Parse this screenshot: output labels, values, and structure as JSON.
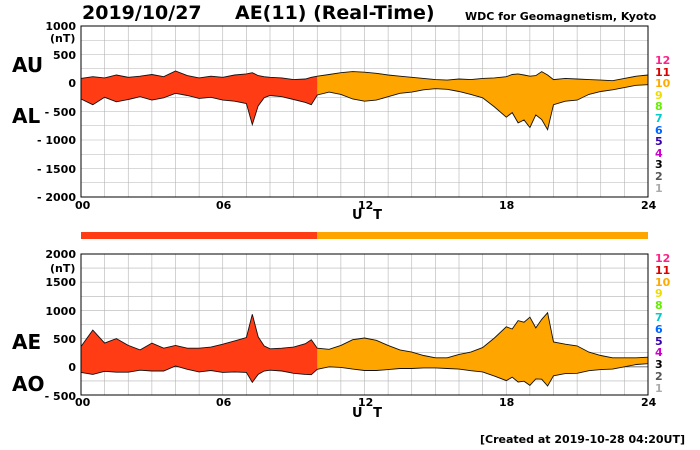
{
  "header": {
    "date": "2019/10/27",
    "title": "AE(11) (Real-Time)",
    "source": "WDC for Geomagnetism, Kyoto"
  },
  "footer": {
    "created": "[Created at 2019-10-28 04:20UT]"
  },
  "colors": {
    "early_fill": "#ff3c14",
    "late_fill": "#ffa500",
    "grid": "#b4b4b4",
    "stations": [
      "#aaaaaa",
      "#555555",
      "#000000",
      "#cc00cc",
      "#3300aa",
      "#0066ff",
      "#00cccc",
      "#66ee00",
      "#eedd00",
      "#ffaa00",
      "#dd0000",
      "#ff2288"
    ]
  },
  "station_counts": [
    "12",
    "11",
    "10",
    "9",
    "8",
    "7",
    "6",
    "5",
    "4",
    "3",
    "2",
    "1"
  ],
  "chart_data": [
    {
      "type": "area",
      "name": "AU/AL",
      "top_label": "AU",
      "bottom_label": "AL",
      "unit": "(nT)",
      "xlabel": "U T",
      "xlim": [
        0,
        24
      ],
      "ylim": [
        -2000,
        1000
      ],
      "ytick_labels": [
        "1000",
        "500",
        "0",
        "- 500",
        "- 1000",
        "- 1500",
        "- 2000"
      ],
      "xtick_labels": [
        "00",
        "06",
        "12",
        "18",
        "24"
      ],
      "color_switch_hour": 10,
      "hours": [
        0,
        0.5,
        1,
        1.5,
        2,
        2.5,
        3,
        3.5,
        4,
        4.5,
        5,
        5.5,
        6,
        6.5,
        7,
        7.25,
        7.5,
        7.75,
        8,
        8.5,
        9,
        9.5,
        9.75,
        10,
        10.5,
        11,
        11.5,
        12,
        12.5,
        13,
        13.5,
        14,
        14.5,
        15,
        15.5,
        16,
        16.5,
        17,
        17.5,
        18,
        18.25,
        18.5,
        18.75,
        19,
        19.25,
        19.5,
        19.75,
        20,
        20.5,
        21,
        21.5,
        22,
        22.5,
        23,
        23.5,
        24
      ],
      "series": [
        {
          "name": "AU",
          "values": [
            80,
            110,
            90,
            140,
            100,
            120,
            150,
            110,
            210,
            130,
            90,
            120,
            100,
            140,
            160,
            180,
            130,
            110,
            100,
            90,
            60,
            70,
            100,
            120,
            150,
            180,
            200,
            190,
            170,
            140,
            120,
            100,
            80,
            60,
            50,
            70,
            60,
            80,
            90,
            110,
            150,
            160,
            140,
            120,
            130,
            200,
            140,
            60,
            80,
            70,
            60,
            50,
            40,
            80,
            120,
            140
          ]
        },
        {
          "name": "AL",
          "values": [
            -280,
            -380,
            -250,
            -330,
            -290,
            -240,
            -300,
            -260,
            -180,
            -220,
            -270,
            -250,
            -300,
            -320,
            -360,
            -730,
            -400,
            -260,
            -220,
            -240,
            -290,
            -340,
            -380,
            -210,
            -160,
            -200,
            -280,
            -320,
            -300,
            -240,
            -180,
            -160,
            -120,
            -100,
            -110,
            -150,
            -200,
            -260,
            -420,
            -600,
            -520,
            -700,
            -650,
            -780,
            -560,
            -640,
            -820,
            -380,
            -320,
            -300,
            -200,
            -150,
            -120,
            -80,
            -40,
            -30
          ]
        }
      ]
    },
    {
      "type": "area",
      "name": "AE/AO",
      "top_label": "AE",
      "bottom_label": "AO",
      "unit": "(nT)",
      "xlabel": "U T",
      "xlim": [
        0,
        24
      ],
      "ylim": [
        -500,
        2000
      ],
      "ytick_labels": [
        "2000",
        "1500",
        "1000",
        "500",
        "0",
        "- 500"
      ],
      "xtick_labels": [
        "00",
        "06",
        "12",
        "18",
        "24"
      ],
      "color_switch_hour": 10,
      "hours": [
        0,
        0.5,
        1,
        1.5,
        2,
        2.5,
        3,
        3.5,
        4,
        4.5,
        5,
        5.5,
        6,
        6.5,
        7,
        7.25,
        7.5,
        7.75,
        8,
        8.5,
        9,
        9.5,
        9.75,
        10,
        10.5,
        11,
        11.5,
        12,
        12.5,
        13,
        13.5,
        14,
        14.5,
        15,
        15.5,
        16,
        16.5,
        17,
        17.5,
        18,
        18.25,
        18.5,
        18.75,
        19,
        19.25,
        19.5,
        19.75,
        20,
        20.5,
        21,
        21.5,
        22,
        22.5,
        23,
        23.5,
        24
      ],
      "series": [
        {
          "name": "AE",
          "values": [
            360,
            650,
            420,
            500,
            380,
            300,
            420,
            330,
            380,
            330,
            330,
            350,
            400,
            460,
            520,
            930,
            530,
            370,
            320,
            330,
            350,
            410,
            480,
            330,
            310,
            380,
            480,
            510,
            470,
            380,
            300,
            260,
            200,
            160,
            160,
            220,
            260,
            340,
            510,
            710,
            670,
            820,
            790,
            880,
            690,
            840,
            960,
            440,
            400,
            370,
            260,
            200,
            160,
            160,
            160,
            170
          ]
        },
        {
          "name": "AO",
          "values": [
            -100,
            -135,
            -80,
            -95,
            -95,
            -60,
            -75,
            -75,
            15,
            -45,
            -90,
            -65,
            -100,
            -90,
            -100,
            -275,
            -135,
            -75,
            -60,
            -75,
            -115,
            -135,
            -140,
            -45,
            0,
            -10,
            -40,
            -65,
            -65,
            -50,
            -30,
            -30,
            -20,
            -20,
            -30,
            -40,
            -70,
            -90,
            -165,
            -245,
            -185,
            -270,
            -255,
            -330,
            -215,
            -220,
            -340,
            -160,
            -120,
            -115,
            -70,
            -50,
            -40,
            0,
            40,
            55
          ]
        }
      ]
    }
  ]
}
